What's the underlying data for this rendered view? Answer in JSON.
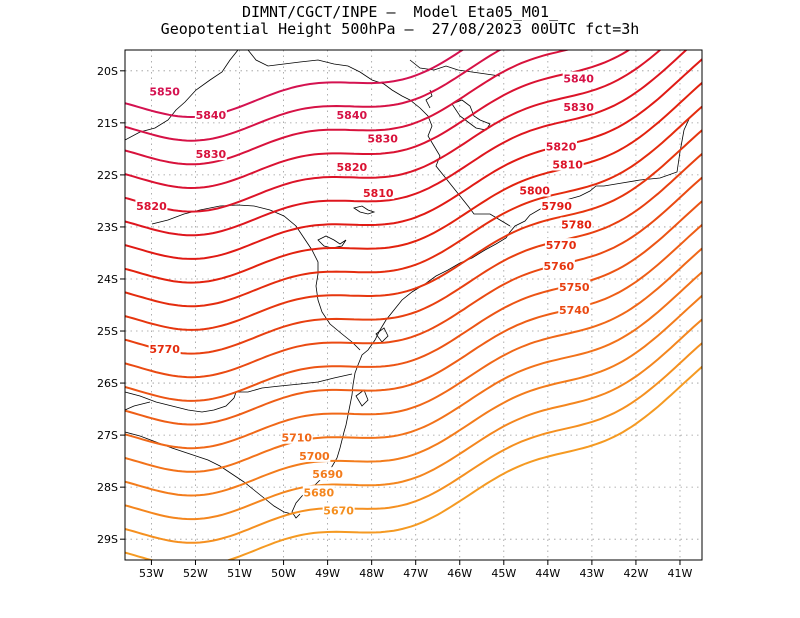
{
  "title": {
    "line1": "DIMNT/CGCT/INPE –  Model Eta05_M01_",
    "line2": "Geopotential Height 500hPa –  27/08/2023 00UTC fct=3h"
  },
  "axes": {
    "lon_labels": [
      "53W",
      "52W",
      "51W",
      "50W",
      "49W",
      "48W",
      "47W",
      "46W",
      "45W",
      "44W",
      "43W",
      "42W",
      "41W"
    ],
    "lat_labels": [
      "20S",
      "21S",
      "22S",
      "23S",
      "24S",
      "25S",
      "26S",
      "27S",
      "28S",
      "29S"
    ]
  },
  "map_data": {
    "lon_range": [
      -53.6,
      -40.5
    ],
    "lat_range": [
      -29.4,
      -19.6
    ],
    "contour_values": [
      5660,
      5670,
      5680,
      5690,
      5700,
      5710,
      5720,
      5730,
      5740,
      5750,
      5760,
      5770,
      5780,
      5790,
      5800,
      5810,
      5820,
      5830,
      5840,
      5850
    ],
    "contour_colors": {
      "5660": "#f59a22",
      "5670": "#f59020",
      "5680": "#f4861e",
      "5690": "#f37c1c",
      "5700": "#f2721a",
      "5710": "#f06818",
      "5720": "#ee5e16",
      "5730": "#ec5414",
      "5740": "#ea4a12",
      "5750": "#e84010",
      "5760": "#e6360e",
      "5770": "#e42c0e",
      "5780": "#e2220e",
      "5790": "#e01a14",
      "5800": "#de161e",
      "5810": "#dc1428",
      "5820": "#da1232",
      "5830": "#d8123c",
      "5840": "#d61246",
      "5850": "#d41250"
    },
    "contour_labels": [
      {
        "text": "5850",
        "value": 5850,
        "lon": -52.7,
        "lat": -20.4
      },
      {
        "text": "5840",
        "value": 5840,
        "lon": -51.65,
        "lat": -20.85
      },
      {
        "text": "5830",
        "value": 5830,
        "lon": -51.65,
        "lat": -21.6
      },
      {
        "text": "5820",
        "value": 5820,
        "lon": -53.0,
        "lat": -22.6
      },
      {
        "text": "5840",
        "value": 5840,
        "lon": -48.45,
        "lat": -20.85
      },
      {
        "text": "5830",
        "value": 5830,
        "lon": -47.75,
        "lat": -21.3
      },
      {
        "text": "5820",
        "value": 5820,
        "lon": -48.45,
        "lat": -21.85
      },
      {
        "text": "5810",
        "value": 5810,
        "lon": -47.85,
        "lat": -22.35
      },
      {
        "text": "5840",
        "value": 5840,
        "lon": -43.3,
        "lat": -20.15
      },
      {
        "text": "5830",
        "value": 5830,
        "lon": -43.3,
        "lat": -20.7
      },
      {
        "text": "5820",
        "value": 5820,
        "lon": -43.7,
        "lat": -21.45
      },
      {
        "text": "5810",
        "value": 5810,
        "lon": -43.55,
        "lat": -21.8
      },
      {
        "text": "5800",
        "value": 5800,
        "lon": -44.3,
        "lat": -22.3
      },
      {
        "text": "5790",
        "value": 5790,
        "lon": -43.8,
        "lat": -22.6
      },
      {
        "text": "5780",
        "value": 5780,
        "lon": -43.35,
        "lat": -22.95
      },
      {
        "text": "5770",
        "value": 5770,
        "lon": -43.7,
        "lat": -23.35
      },
      {
        "text": "5760",
        "value": 5760,
        "lon": -43.75,
        "lat": -23.75
      },
      {
        "text": "5750",
        "value": 5750,
        "lon": -43.4,
        "lat": -24.15
      },
      {
        "text": "5740",
        "value": 5740,
        "lon": -43.4,
        "lat": -24.6
      },
      {
        "text": "5770",
        "value": 5770,
        "lon": -52.7,
        "lat": -25.35
      },
      {
        "text": "5710",
        "value": 5710,
        "lon": -49.7,
        "lat": -27.05
      },
      {
        "text": "5700",
        "value": 5700,
        "lon": -49.3,
        "lat": -27.4
      },
      {
        "text": "5690",
        "value": 5690,
        "lon": -49.0,
        "lat": -27.75
      },
      {
        "text": "5680",
        "value": 5680,
        "lon": -49.2,
        "lat": -28.1
      },
      {
        "text": "5670",
        "value": 5670,
        "lon": -48.75,
        "lat": -28.45
      }
    ]
  }
}
